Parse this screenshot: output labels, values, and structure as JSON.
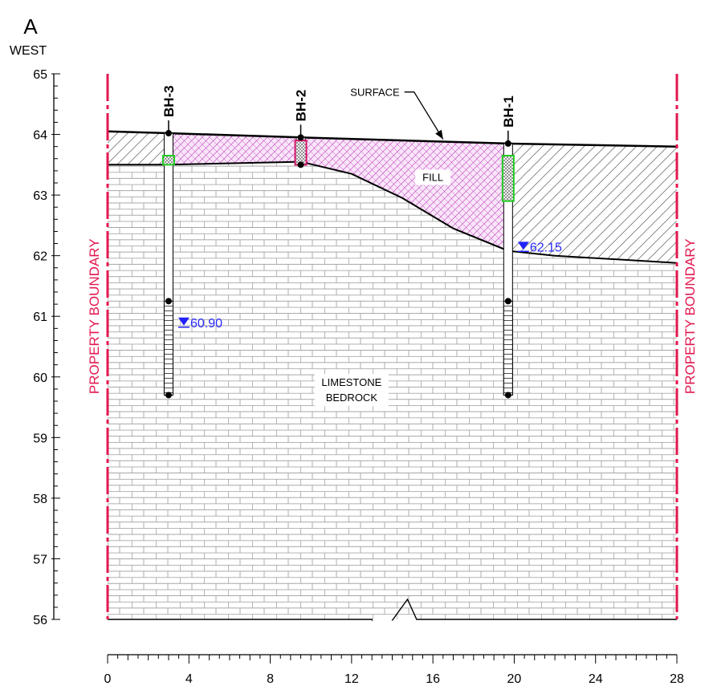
{
  "header": {
    "section_letter": "A",
    "direction": "WEST"
  },
  "property_boundary_label": "PROPERTY BOUNDARY",
  "labels": {
    "surface": "SURFACE",
    "fill": "FILL",
    "bedrock_line1": "LIMESTONE",
    "bedrock_line2": "BEDROCK"
  },
  "colors": {
    "boundary": "#e3174f",
    "fill_hatch": "#c24fc2",
    "fill_bg": "#f9e6f9",
    "screen": "#22cc22",
    "water": "#2222ff",
    "brick": "#9a9a9a"
  },
  "chart_data": {
    "type": "geologic-cross-section",
    "y_axis": {
      "range": [
        56,
        65
      ],
      "major_step": 1,
      "minor_step": 0.2,
      "tick_labels": [
        "56",
        "57",
        "58",
        "59",
        "60",
        "61",
        "62",
        "63",
        "64",
        "65"
      ]
    },
    "x_axis": {
      "range": [
        0,
        28
      ],
      "major_step": 4,
      "minor_step": 0.5,
      "tick_labels": [
        "0",
        "4",
        "8",
        "12",
        "16",
        "20",
        "24",
        "28"
      ]
    },
    "surface": [
      [
        0,
        64.05
      ],
      [
        3,
        64.02
      ],
      [
        9.5,
        63.95
      ],
      [
        19.7,
        63.85
      ],
      [
        28,
        63.8
      ]
    ],
    "bedrock_top": [
      [
        0,
        63.5
      ],
      [
        3,
        63.5
      ],
      [
        9.5,
        63.55
      ],
      [
        12,
        63.35
      ],
      [
        14.5,
        62.95
      ],
      [
        17,
        62.45
      ],
      [
        19.7,
        62.08
      ],
      [
        22,
        62.0
      ],
      [
        28,
        61.88
      ]
    ],
    "boreholes": [
      {
        "name": "BH-3",
        "x": 3.0,
        "top": 64.02,
        "bottom": 59.7,
        "screen": [
          63.5,
          63.65
        ],
        "core_top": 61.25,
        "water_level": 60.9,
        "water_label": "60.90"
      },
      {
        "name": "BH-2",
        "x": 9.5,
        "top": 63.95,
        "bottom": 63.5,
        "screen": [
          63.5,
          63.9
        ],
        "core_top": null,
        "water_level": null,
        "water_label": null
      },
      {
        "name": "BH-1",
        "x": 19.7,
        "top": 63.85,
        "bottom": 59.7,
        "screen": [
          62.9,
          63.65
        ],
        "core_top": 61.25,
        "water_level": 62.15,
        "water_label": "62.15"
      }
    ]
  }
}
